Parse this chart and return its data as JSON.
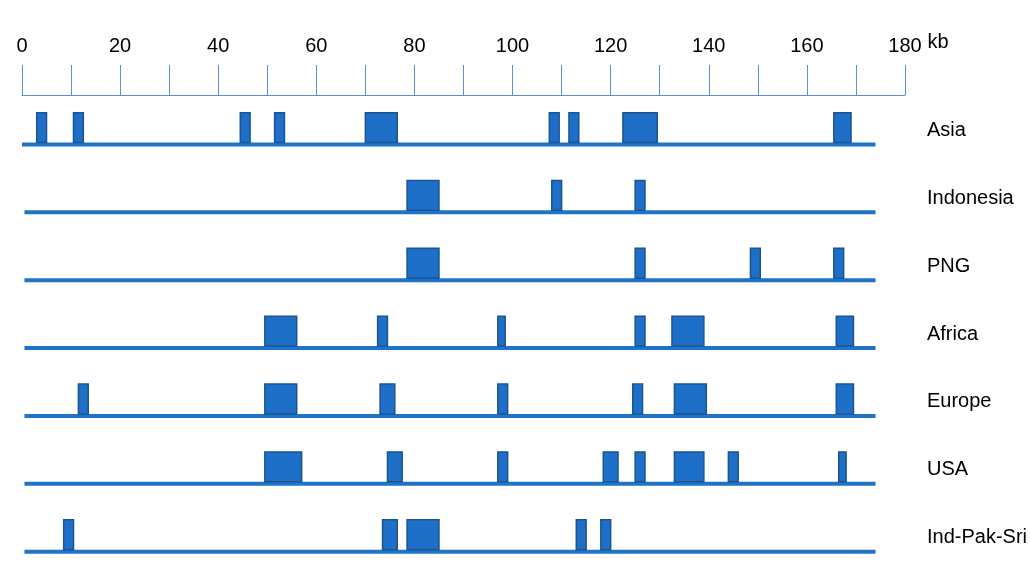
{
  "chart_data": {
    "type": "bar",
    "orientation": "horizontal",
    "xlabel": "kb",
    "categories": [
      "Asia",
      "Indonesia",
      "PNG",
      "Africa",
      "Europe",
      "USA",
      "Ind-Pak-Sri"
    ],
    "xlim": [
      0,
      180
    ],
    "xticks": [
      0,
      20,
      40,
      60,
      80,
      100,
      120,
      140,
      160,
      180
    ],
    "grid": false,
    "series": [
      {
        "color": "#1e6fc8",
        "base": [
          3,
          78.5,
          78.5,
          49.5,
          11.5,
          49.5,
          8.5
        ],
        "values": [
          2,
          6.5,
          6.5,
          6.5,
          2,
          7.5,
          2
        ]
      },
      {
        "color": "#1e6fc8",
        "base": [
          10.5,
          108,
          125,
          72.5,
          49.5,
          74.5,
          73.5
        ],
        "values": [
          2,
          2,
          2,
          2,
          6.5,
          3,
          3
        ]
      },
      {
        "color": "#1e6fc8",
        "base": [
          44.5,
          125,
          148.5,
          97,
          73,
          97,
          78.5
        ],
        "values": [
          2,
          2,
          2,
          1.5,
          3,
          2,
          6.5
        ]
      },
      {
        "color": "#1e6fc8",
        "base": [
          51.5,
          null,
          165.5,
          125,
          97,
          118.5,
          113
        ],
        "values": [
          2,
          null,
          2,
          2,
          2,
          3,
          2
        ]
      },
      {
        "color": "#1e6fc8",
        "base": [
          70,
          null,
          null,
          132.5,
          124.5,
          125,
          118
        ],
        "values": [
          6.5,
          null,
          null,
          6.5,
          2,
          2,
          2
        ]
      },
      {
        "color": "#1e6fc8",
        "base": [
          107.5,
          null,
          null,
          166,
          133,
          133,
          null
        ],
        "values": [
          2,
          null,
          null,
          3.5,
          6.5,
          6,
          null
        ]
      },
      {
        "color": "#1e6fc8",
        "base": [
          111.5,
          null,
          null,
          null,
          166,
          144,
          null
        ],
        "values": [
          2,
          null,
          null,
          null,
          3.5,
          2,
          null
        ]
      },
      {
        "color": "#1e6fc8",
        "base": [
          122.5,
          null,
          null,
          null,
          null,
          166.5,
          null
        ],
        "values": [
          7,
          null,
          null,
          null,
          null,
          1.5,
          null
        ]
      },
      {
        "color": "#1e6fc8",
        "base": [
          165.5,
          null,
          null,
          null,
          null,
          null,
          null
        ],
        "values": [
          3.5,
          null,
          null,
          null,
          null,
          null,
          null
        ]
      },
      {
        "color": "#1f74c8",
        "base": [
          0,
          0.5,
          0.5,
          0.5,
          0.5,
          0.5,
          0.5
        ],
        "values": [
          174,
          173.5,
          173.5,
          173.5,
          173.5,
          173.5,
          173.5
        ]
      }
    ]
  }
}
